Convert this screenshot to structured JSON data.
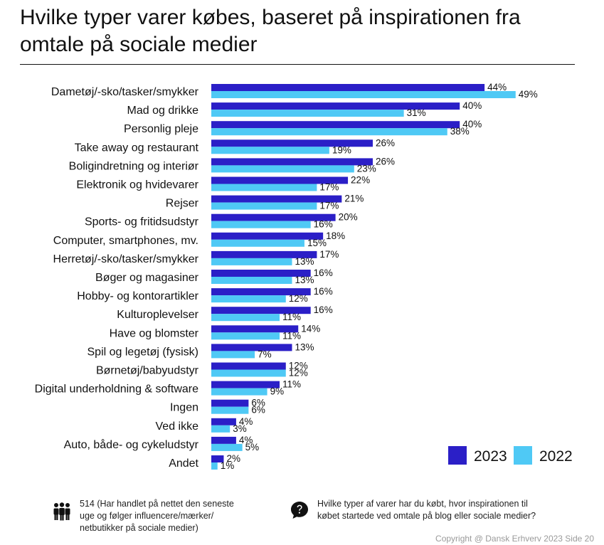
{
  "title": "Hvilke typer varer købes, baseret på inspirationen fra omtale på sociale medier",
  "colors": {
    "series_2023": "#2b1fc7",
    "series_2022": "#4fc9f5"
  },
  "icons": {
    "sample": "people-group-icon",
    "question": "question-bubble-icon"
  },
  "footer": {
    "sample_note": "514 (Har handlet på nettet den seneste\nuge og følger influencere/mærker/\nnetbutikker på sociale medier)",
    "question": "Hvilke typer af varer har du købt, hvor inspirationen til\nkøbet startede ved omtale på blog eller sociale medier?",
    "copyright": "Copyright @ Dansk Erhverv 2023  Side  20"
  },
  "chart_data": {
    "type": "bar",
    "orientation": "horizontal",
    "title": "Hvilke typer varer købes, baseret på inspirationen fra omtale på sociale medier",
    "xlabel": "",
    "ylabel": "",
    "xlim": [
      0,
      50
    ],
    "grid": false,
    "legend_position": "bottom-right",
    "value_suffix": "%",
    "categories": [
      "Dametøj/-sko/tasker/smykker",
      "Mad og drikke",
      "Personlig pleje",
      "Take away og restaurant",
      "Boligindretning og interiør",
      "Elektronik og hvidevarer",
      "Rejser",
      "Sports- og fritidsudstyr",
      "Computer, smartphones, mv.",
      "Herretøj/-sko/tasker/smykker",
      "Bøger og magasiner",
      "Hobby- og kontorartikler",
      "Kulturoplevelser",
      "Have og blomster",
      "Spil og legetøj (fysisk)",
      "Børnetøj/babyudstyr",
      "Digital underholdning & software",
      "Ingen",
      "Ved ikke",
      "Auto, både- og cykeludstyr",
      "Andet"
    ],
    "series": [
      {
        "name": "2023",
        "values": [
          44,
          40,
          40,
          26,
          26,
          22,
          21,
          20,
          18,
          17,
          16,
          16,
          16,
          14,
          13,
          12,
          11,
          6,
          4,
          4,
          2
        ]
      },
      {
        "name": "2022",
        "values": [
          49,
          31,
          38,
          19,
          23,
          17,
          17,
          16,
          15,
          13,
          13,
          12,
          11,
          11,
          7,
          12,
          9,
          6,
          3,
          5,
          1
        ]
      }
    ]
  }
}
